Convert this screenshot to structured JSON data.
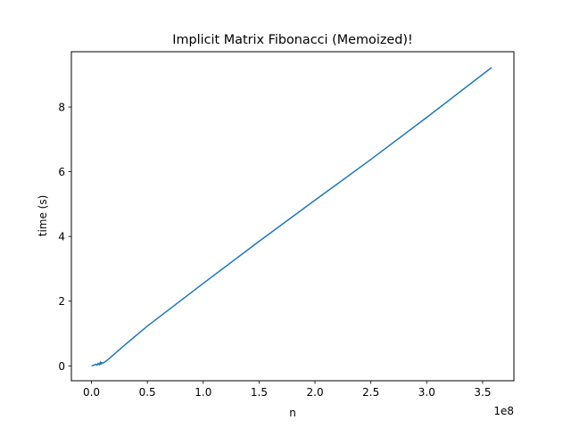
{
  "chart_data": {
    "type": "line",
    "title": "Implicit Matrix Fibonacci (Memoized)!",
    "xlabel": "n",
    "ylabel": "time (s)",
    "x_offset_label": "1e8",
    "xlim": [
      -0.18,
      3.78
    ],
    "ylim": [
      -0.46,
      9.71
    ],
    "xticks": [
      0,
      0.5,
      1.0,
      1.5,
      2.0,
      2.5,
      3.0,
      3.5
    ],
    "xtick_labels": [
      "0.0",
      "0.5",
      "1.0",
      "1.5",
      "2.0",
      "2.5",
      "3.0",
      "3.5"
    ],
    "yticks": [
      0,
      2,
      4,
      6,
      8
    ],
    "ytick_labels": [
      "0",
      "2",
      "4",
      "6",
      "8"
    ],
    "grid": false,
    "line_color": "#1f77b4",
    "series": [
      {
        "x": [
          0,
          0.02,
          0.04,
          0.05,
          0.06,
          0.07,
          0.08,
          0.085,
          0.09,
          0.1,
          0.12,
          0.15,
          0.2,
          0.3,
          0.5,
          1.0,
          1.5,
          2.0,
          2.5,
          3.0,
          3.58
        ],
        "y": [
          0,
          0.02,
          0.05,
          0.02,
          0.08,
          0.03,
          0.12,
          0.05,
          0.1,
          0.08,
          0.12,
          0.2,
          0.35,
          0.65,
          1.23,
          2.55,
          3.85,
          5.12,
          6.38,
          7.68,
          9.22
        ]
      }
    ]
  }
}
